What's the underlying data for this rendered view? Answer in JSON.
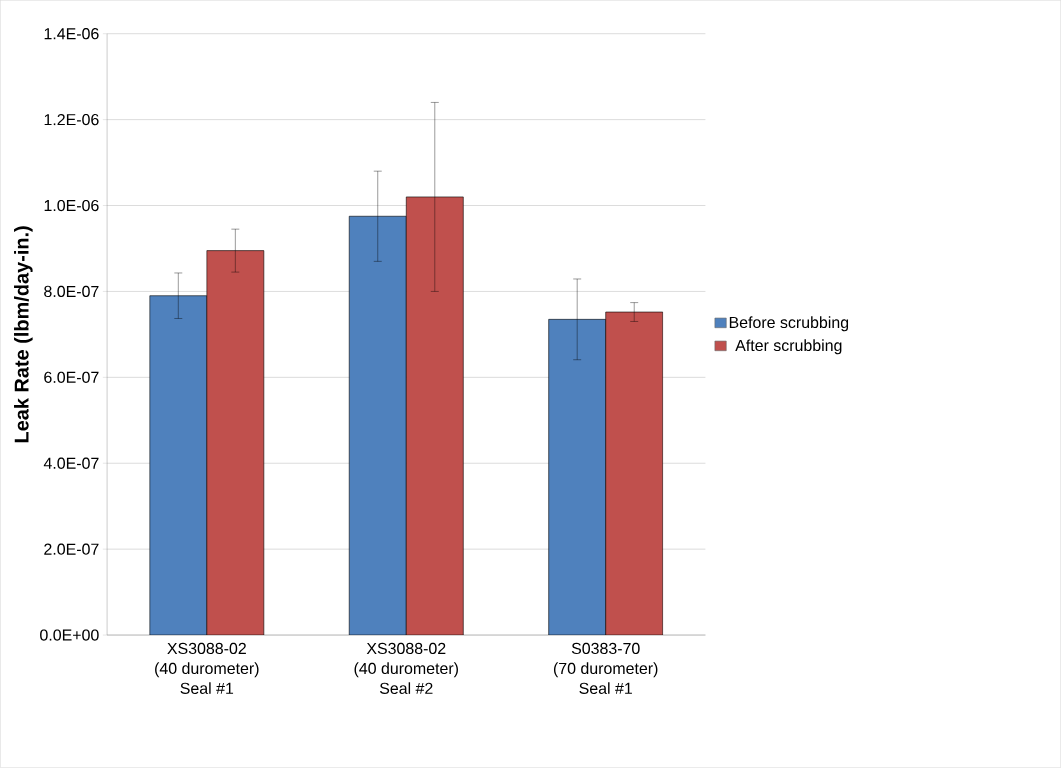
{
  "chart_data": {
    "type": "bar",
    "ylabel": "Leak Rate (lbm/day-in.)",
    "categories": [
      "XS3088-02\n(40 durometer)\nSeal #1",
      "XS3088-02\n(40 durometer)\nSeal #2",
      "S0383-70\n(70 durometer)\nSeal #1"
    ],
    "series": [
      {
        "name": "Before scrubbing",
        "color": "#4f81bd",
        "values": [
          7.9e-07,
          9.75e-07,
          7.35e-07
        ],
        "errors": [
          5.3e-08,
          1.05e-07,
          9.4e-08
        ]
      },
      {
        "name": "After scrubbing",
        "color": "#c0504d",
        "values": [
          8.95e-07,
          1.02e-06,
          7.52e-07
        ],
        "errors": [
          5e-08,
          2.2e-07,
          2.2e-08
        ]
      }
    ],
    "ylim": [
      0,
      1.4e-06
    ],
    "yticks": [
      {
        "value": 0,
        "label": "0.0E+00"
      },
      {
        "value": 2e-07,
        "label": "2.0E-07"
      },
      {
        "value": 4e-07,
        "label": "4.0E-07"
      },
      {
        "value": 6e-07,
        "label": "6.0E-07"
      },
      {
        "value": 8e-07,
        "label": "8.0E-07"
      },
      {
        "value": 1e-06,
        "label": "1.0E-06"
      },
      {
        "value": 1.2e-06,
        "label": "1.2E-06"
      },
      {
        "value": 1.4e-06,
        "label": "1.4E-06"
      }
    ],
    "grid": "y",
    "legend": "right"
  }
}
